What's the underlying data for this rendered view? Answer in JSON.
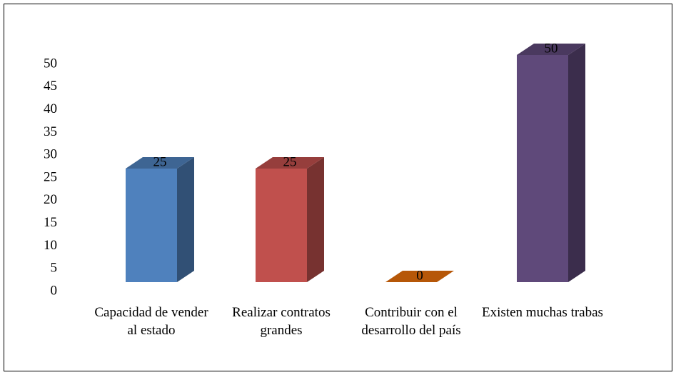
{
  "chart_data": {
    "type": "bar3d",
    "categories": [
      "Capacidad de vender al estado",
      "Realizar contratos grandes",
      "Contribuir con el desarrollo del país",
      "Existen muchas trabas"
    ],
    "values": [
      25,
      25,
      0,
      50
    ],
    "colors": [
      "#4f81bd",
      "#c0504d",
      "#b65708",
      "#5f497a"
    ],
    "ylim": [
      0,
      50
    ],
    "yticks": [
      0,
      5,
      10,
      15,
      20,
      25,
      30,
      35,
      40,
      45,
      50
    ],
    "grid": false
  }
}
